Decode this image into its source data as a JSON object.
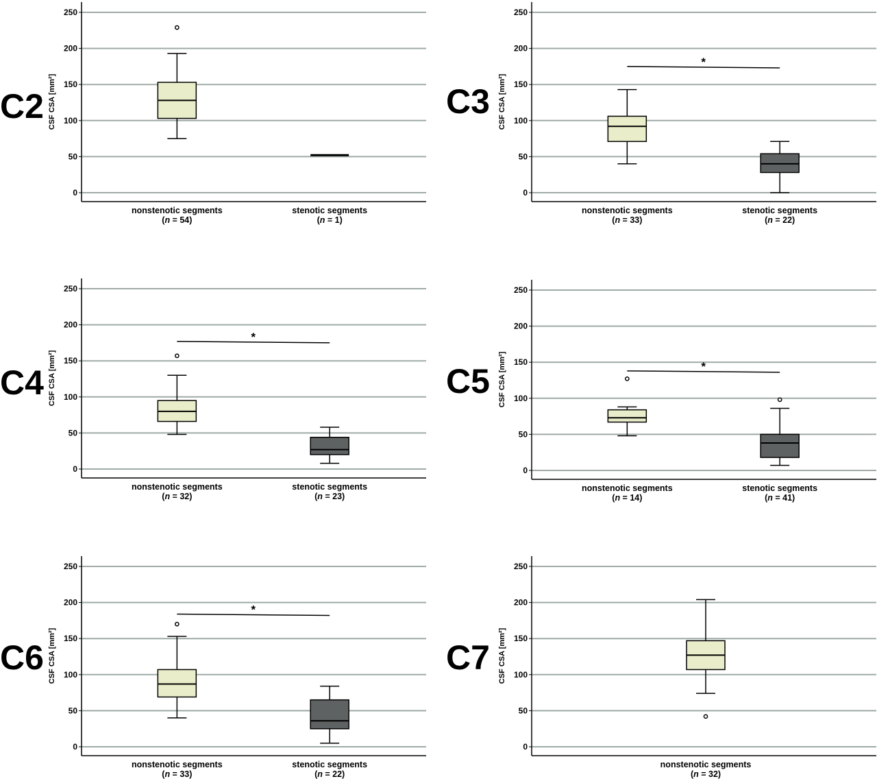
{
  "figure": {
    "panels_order": [
      "C2",
      "C3",
      "C4",
      "C5",
      "C6",
      "C7"
    ]
  },
  "chart_data": [
    {
      "type": "boxplot",
      "panel_label": "C2",
      "ylabel": "CSF CSA [mm²]",
      "ylim": [
        0,
        250
      ],
      "yticks": [
        0,
        50,
        100,
        150,
        200,
        250
      ],
      "grid": true,
      "groups": [
        {
          "label": "nonstenotic segments",
          "n_label": "n = 54",
          "color": "#e9edc9",
          "min": 75,
          "q1": 103,
          "median": 128,
          "q3": 153,
          "max": 193,
          "outliers": [
            229
          ]
        },
        {
          "label": "stenotic segments",
          "n_label": "n = 1",
          "color": "#5f6263",
          "min": 52,
          "q1": 52,
          "median": 52,
          "q3": 52,
          "max": 52,
          "outliers": []
        }
      ],
      "significance": null
    },
    {
      "type": "boxplot",
      "panel_label": "C3",
      "ylabel": "CSF CSA [mm²]",
      "ylim": [
        0,
        250
      ],
      "yticks": [
        0,
        50,
        100,
        150,
        200,
        250
      ],
      "grid": true,
      "groups": [
        {
          "label": "nonstenotic segments",
          "n_label": "n = 33",
          "color": "#e9edc9",
          "min": 40,
          "q1": 71,
          "median": 92,
          "q3": 106,
          "max": 143,
          "outliers": []
        },
        {
          "label": "stenotic segments",
          "n_label": "n = 22",
          "color": "#5f6263",
          "min": 0,
          "q1": 28,
          "median": 40,
          "q3": 54,
          "max": 71,
          "outliers": []
        }
      ],
      "significance": {
        "label": "*",
        "y": 174
      }
    },
    {
      "type": "boxplot",
      "panel_label": "C4",
      "ylabel": "CSF CSA [mm²]",
      "ylim": [
        0,
        250
      ],
      "yticks": [
        0,
        50,
        100,
        150,
        200,
        250
      ],
      "grid": true,
      "groups": [
        {
          "label": "nonstenotic segments",
          "n_label": "n = 32",
          "color": "#e9edc9",
          "min": 48,
          "q1": 66,
          "median": 80,
          "q3": 95,
          "max": 130,
          "outliers": [
            157
          ]
        },
        {
          "label": "stenotic segments",
          "n_label": "n = 23",
          "color": "#5f6263",
          "min": 8,
          "q1": 20,
          "median": 27,
          "q3": 44,
          "max": 58,
          "outliers": []
        }
      ],
      "significance": {
        "label": "*",
        "y": 176
      }
    },
    {
      "type": "boxplot",
      "panel_label": "C5",
      "ylabel": "CSF CSA [mm²]",
      "ylim": [
        0,
        250
      ],
      "yticks": [
        0,
        50,
        100,
        150,
        200,
        250
      ],
      "grid": true,
      "groups": [
        {
          "label": "nonstenotic segments",
          "n_label": "n = 14",
          "color": "#e9edc9",
          "min": 48,
          "q1": 67,
          "median": 73,
          "q3": 84,
          "max": 88,
          "outliers": [
            127
          ]
        },
        {
          "label": "stenotic segments",
          "n_label": "n = 41",
          "color": "#5f6263",
          "min": 7,
          "q1": 18,
          "median": 38,
          "q3": 50,
          "max": 86,
          "outliers": [
            98
          ]
        }
      ],
      "significance": {
        "label": "*",
        "y": 137
      }
    },
    {
      "type": "boxplot",
      "panel_label": "C6",
      "ylabel": "CSF CSA [mm²]",
      "ylim": [
        0,
        250
      ],
      "yticks": [
        0,
        50,
        100,
        150,
        200,
        250
      ],
      "grid": true,
      "groups": [
        {
          "label": "nonstenotic segments",
          "n_label": "n = 33",
          "color": "#e9edc9",
          "min": 40,
          "q1": 69,
          "median": 87,
          "q3": 107,
          "max": 153,
          "outliers": [
            170
          ]
        },
        {
          "label": "stenotic segments",
          "n_label": "n = 22",
          "color": "#5f6263",
          "min": 5,
          "q1": 25,
          "median": 36,
          "q3": 65,
          "max": 84,
          "outliers": []
        }
      ],
      "significance": {
        "label": "*",
        "y": 183
      }
    },
    {
      "type": "boxplot",
      "panel_label": "C7",
      "ylabel": "CSF CSA [mm²]",
      "ylim": [
        0,
        250
      ],
      "yticks": [
        0,
        50,
        100,
        150,
        200,
        250
      ],
      "grid": true,
      "groups": [
        {
          "label": "nonstenotic segments",
          "n_label": "n = 32",
          "color": "#e9edc9",
          "min": 74,
          "q1": 107,
          "median": 127,
          "q3": 147,
          "max": 204,
          "outliers": [
            42
          ]
        }
      ],
      "significance": null
    }
  ]
}
